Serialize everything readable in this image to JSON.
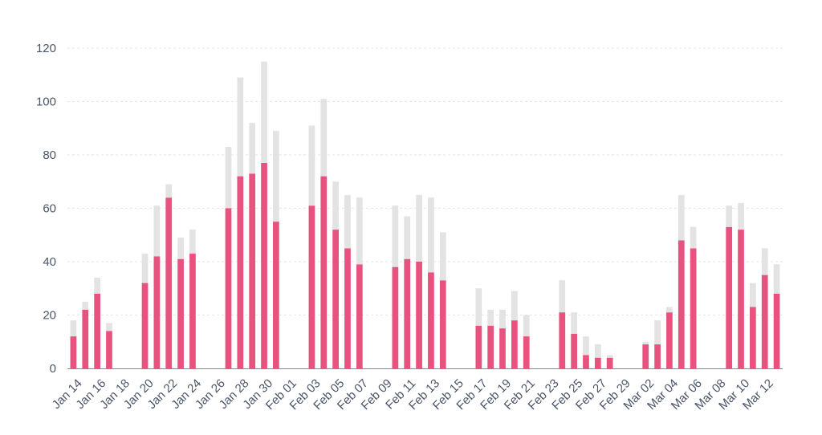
{
  "chart_data": {
    "type": "bar",
    "stacked": true,
    "title": "",
    "xlabel": "",
    "ylabel": "",
    "ylim": [
      0,
      120
    ],
    "yticks": [
      0,
      20,
      40,
      60,
      80,
      100,
      120
    ],
    "grid": true,
    "legend": "none",
    "colors": {
      "primary": "#e9527e",
      "secondary": "#e3e3e3",
      "axis_text": "#4a5568"
    },
    "categories": [
      "Jan 14",
      "Jan 15",
      "Jan 16",
      "Jan 17",
      "Jan 18",
      "Jan 19",
      "Jan 20",
      "Jan 21",
      "Jan 22",
      "Jan 23",
      "Jan 24",
      "Jan 25",
      "Jan 26",
      "Jan 27",
      "Jan 28",
      "Jan 29",
      "Jan 30",
      "Jan 31",
      "Feb 01",
      "Feb 02",
      "Feb 03",
      "Feb 04",
      "Feb 05",
      "Feb 06",
      "Feb 07",
      "Feb 08",
      "Feb 09",
      "Feb 10",
      "Feb 11",
      "Feb 12",
      "Feb 13",
      "Feb 14",
      "Feb 15",
      "Feb 16",
      "Feb 17",
      "Feb 18",
      "Feb 19",
      "Feb 20",
      "Feb 21",
      "Feb 22",
      "Feb 23",
      "Feb 24",
      "Feb 25",
      "Feb 26",
      "Feb 27",
      "Feb 28",
      "Feb 29",
      "Mar 01",
      "Mar 02",
      "Mar 03",
      "Mar 04",
      "Mar 05",
      "Mar 06",
      "Mar 07",
      "Mar 08",
      "Mar 09",
      "Mar 10",
      "Mar 11",
      "Mar 12",
      "Mar 13"
    ],
    "xtick_labels": [
      "Jan 14",
      "Jan 16",
      "Jan 18",
      "Jan 20",
      "Jan 22",
      "Jan 24",
      "Jan 26",
      "Jan 28",
      "Jan 30",
      "Feb 01",
      "Feb 03",
      "Feb 05",
      "Feb 07",
      "Feb 09",
      "Feb 11",
      "Feb 13",
      "Feb 15",
      "Feb 17",
      "Feb 19",
      "Feb 21",
      "Feb 23",
      "Feb 25",
      "Feb 27",
      "Feb 29",
      "Mar 02",
      "Mar 04",
      "Mar 06",
      "Mar 08",
      "Mar 10",
      "Mar 12"
    ],
    "series": [
      {
        "values": [
          12,
          22,
          28,
          14,
          0,
          0,
          32,
          42,
          64,
          41,
          43,
          0,
          0,
          60,
          72,
          73,
          77,
          55,
          0,
          0,
          61,
          72,
          52,
          45,
          39,
          0,
          0,
          38,
          41,
          40,
          36,
          33,
          0,
          0,
          16,
          16,
          15,
          18,
          12,
          0,
          0,
          21,
          13,
          5,
          4,
          4,
          0,
          0,
          9,
          9,
          21,
          48,
          45,
          0,
          0,
          53,
          52,
          23,
          35,
          28
        ]
      },
      {
        "values": [
          6,
          3,
          6,
          3,
          0,
          0,
          11,
          19,
          5,
          8,
          9,
          0,
          0,
          23,
          37,
          19,
          38,
          34,
          0,
          0,
          30,
          29,
          18,
          20,
          25,
          0,
          0,
          23,
          16,
          25,
          28,
          18,
          0,
          0,
          14,
          6,
          7,
          11,
          8,
          0,
          0,
          12,
          8,
          7,
          5,
          1,
          0,
          0,
          1,
          9,
          2,
          17,
          8,
          0,
          0,
          8,
          10,
          9,
          10,
          11
        ]
      }
    ]
  }
}
